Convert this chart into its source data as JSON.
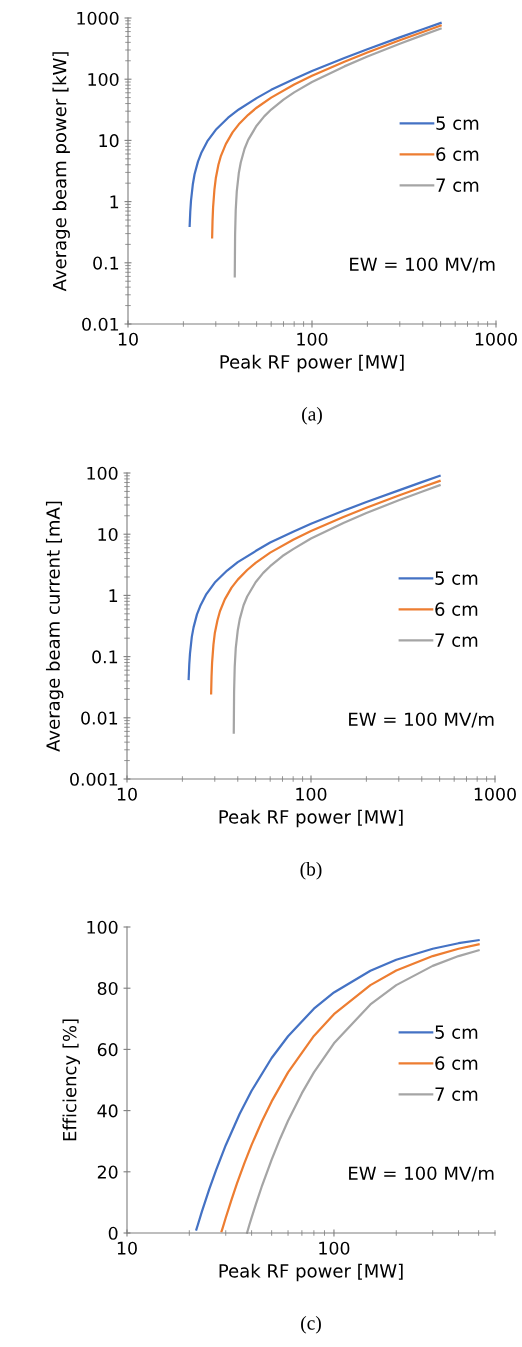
{
  "chart_data": [
    {
      "type": "line",
      "xlabel": "Peak RF power [MW]",
      "ylabel": "Average beam power [kW]",
      "log": "xy",
      "xlim": [
        10,
        1000
      ],
      "xticks": [
        10,
        100,
        1000
      ],
      "ylim": [
        0.01,
        1000
      ],
      "yticks": [
        0.01,
        0.1,
        1,
        10,
        100,
        1000
      ],
      "grid": false,
      "legend": "right",
      "marker": "none",
      "line_style": "solid",
      "annotations": [
        "EW = 100 MV/m",
        "(a)"
      ],
      "series": [
        {
          "name": "5 cm",
          "color": "#4472c4",
          "x": [
            21.63,
            21.8,
            22,
            22.5,
            23,
            24,
            25,
            27,
            30,
            35,
            40,
            50,
            60,
            80,
            100,
            150,
            200,
            300,
            400,
            500
          ],
          "values": [
            0.4,
            0.69,
            1.04,
            1.9,
            2.8,
            4.5,
            6.2,
            9.7,
            14.9,
            23.5,
            32,
            49,
            67,
            101,
            136,
            222,
            309,
            482,
            655,
            828
          ]
        },
        {
          "name": "6 cm",
          "color": "#ed7d31",
          "x": [
            28.66,
            28.8,
            29,
            29.5,
            30,
            31,
            32,
            34,
            37,
            40,
            45,
            50,
            60,
            80,
            100,
            150,
            200,
            300,
            400,
            500
          ],
          "values": [
            0.26,
            0.48,
            0.8,
            1.59,
            2.4,
            4.0,
            5.6,
            8.7,
            13.5,
            18.3,
            26.2,
            34.2,
            50,
            82,
            114,
            193,
            273,
            432,
            591,
            750
          ]
        },
        {
          "name": "7 cm",
          "color": "#a5a5a5",
          "x": [
            38.04,
            38.2,
            38.5,
            39,
            40,
            41,
            43,
            45,
            50,
            55,
            60,
            70,
            80,
            100,
            150,
            200,
            300,
            400,
            500
          ],
          "values": [
            0.06,
            0.29,
            0.73,
            1.45,
            2.9,
            4.35,
            7.3,
            10.2,
            17.4,
            24.7,
            31.9,
            46.4,
            60.9,
            89.9,
            162,
            235,
            380,
            525,
            670
          ]
        }
      ]
    },
    {
      "type": "line",
      "xlabel": "Peak RF power [MW]",
      "ylabel": "Average beam current [mA]",
      "log": "xy",
      "xlim": [
        10,
        1000
      ],
      "xticks": [
        10,
        100,
        1000
      ],
      "ylim": [
        0.001,
        100
      ],
      "yticks": [
        0.001,
        0.01,
        0.1,
        1,
        10,
        100
      ],
      "grid": false,
      "legend": "right",
      "marker": "none",
      "line_style": "solid",
      "annotations": [
        "EW = 100 MV/m",
        "(b)"
      ],
      "series": [
        {
          "name": "5 cm",
          "color": "#4472c4",
          "x": [
            21.63,
            21.8,
            22,
            22.5,
            23,
            24,
            25,
            27,
            30,
            35,
            40,
            50,
            60,
            80,
            100,
            150,
            200,
            300,
            400,
            500
          ],
          "values": [
            0.043,
            0.075,
            0.113,
            0.21,
            0.3,
            0.49,
            0.67,
            1.05,
            1.62,
            2.55,
            3.5,
            5.3,
            7.3,
            11,
            14.8,
            24.1,
            33.6,
            52,
            71,
            90
          ]
        },
        {
          "name": "6 cm",
          "color": "#ed7d31",
          "x": [
            28.66,
            28.8,
            29,
            29.5,
            30,
            31,
            32,
            34,
            37,
            40,
            45,
            50,
            60,
            80,
            100,
            150,
            200,
            300,
            400,
            500
          ],
          "values": [
            0.025,
            0.047,
            0.079,
            0.157,
            0.24,
            0.39,
            0.55,
            0.86,
            1.34,
            1.81,
            2.6,
            3.4,
            5.0,
            8.1,
            11.3,
            19.1,
            27,
            43,
            58.5,
            74
          ]
        },
        {
          "name": "7 cm",
          "color": "#a5a5a5",
          "x": [
            38.04,
            38.2,
            38.5,
            39,
            40,
            41,
            43,
            45,
            50,
            55,
            60,
            70,
            80,
            100,
            150,
            200,
            300,
            400,
            500
          ],
          "values": [
            0.0057,
            0.027,
            0.069,
            0.137,
            0.27,
            0.41,
            0.69,
            0.96,
            1.64,
            2.33,
            3.0,
            4.4,
            5.7,
            8.5,
            15.3,
            22.2,
            35.8,
            49.5,
            63
          ]
        }
      ]
    },
    {
      "type": "line",
      "xlabel": "Peak RF power [MW]",
      "ylabel": "Efficiency [%]",
      "log": "x",
      "xlim": [
        10,
        600
      ],
      "xticks": [
        10,
        100
      ],
      "ylim": [
        0,
        100
      ],
      "yticks": [
        0,
        20,
        40,
        60,
        80,
        100
      ],
      "grid": false,
      "legend": "right",
      "marker": "none",
      "line_style": "solid",
      "annotations": [
        "EW = 100 MV/m",
        "(c)"
      ],
      "series": [
        {
          "name": "5 cm",
          "color": "#4472c4",
          "x": [
            21.63,
            22,
            23,
            25,
            27,
            30,
            35,
            40,
            50,
            60,
            80,
            100,
            150,
            200,
            300,
            400,
            500
          ],
          "values": [
            1.1,
            2.7,
            7.0,
            14.4,
            20.7,
            28.7,
            38.9,
            46.5,
            57.2,
            64.3,
            73.3,
            78.6,
            85.7,
            89.3,
            92.9,
            94.7,
            95.7
          ]
        },
        {
          "name": "6 cm",
          "color": "#ed7d31",
          "x": [
            28.66,
            29,
            30,
            32,
            34,
            37,
            40,
            45,
            50,
            60,
            80,
            100,
            150,
            200,
            300,
            400,
            500
          ],
          "values": [
            0.6,
            1.7,
            5.0,
            10.9,
            16.2,
            23.0,
            28.8,
            36.7,
            43.0,
            52.5,
            64.4,
            71.5,
            81.0,
            85.8,
            90.5,
            92.9,
            94.3
          ]
        },
        {
          "name": "7 cm",
          "color": "#a5a5a5",
          "x": [
            38.04,
            39,
            40,
            42,
            45,
            50,
            55,
            60,
            70,
            80,
            100,
            150,
            200,
            300,
            400,
            500
          ],
          "values": [
            0.1,
            2.6,
            5.0,
            9.5,
            15.6,
            24.0,
            30.9,
            36.7,
            45.7,
            52.5,
            62.0,
            74.7,
            81.0,
            87.3,
            90.5,
            92.4
          ]
        }
      ]
    }
  ]
}
